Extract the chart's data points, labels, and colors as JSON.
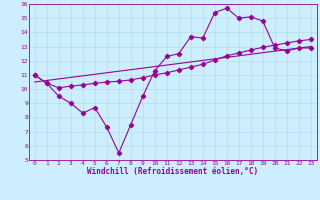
{
  "xlabel": "Windchill (Refroidissement éolien,°C)",
  "xlim": [
    -0.5,
    23.5
  ],
  "ylim": [
    5,
    16
  ],
  "xticks": [
    0,
    1,
    2,
    3,
    4,
    5,
    6,
    7,
    8,
    9,
    10,
    11,
    12,
    13,
    14,
    15,
    16,
    17,
    18,
    19,
    20,
    21,
    22,
    23
  ],
  "yticks": [
    5,
    6,
    7,
    8,
    9,
    10,
    11,
    12,
    13,
    14,
    15,
    16
  ],
  "background_color": "#cceeff",
  "line_color": "#990099",
  "series1_x": [
    0,
    1,
    2,
    3,
    4,
    5,
    6,
    7,
    8,
    9,
    10,
    11,
    12,
    13,
    14,
    15,
    16,
    17,
    18,
    19,
    20,
    21,
    22,
    23
  ],
  "series1_y": [
    11.0,
    10.4,
    9.5,
    9.0,
    8.3,
    8.7,
    7.3,
    5.5,
    7.5,
    9.5,
    11.3,
    12.3,
    12.5,
    13.7,
    13.6,
    15.4,
    15.7,
    15.0,
    15.1,
    14.8,
    12.9,
    12.7,
    12.9,
    12.9
  ],
  "series2_x": [
    0,
    1,
    2,
    3,
    4,
    5,
    6,
    7,
    8,
    9,
    10,
    11,
    12,
    13,
    14,
    15,
    16,
    17,
    18,
    19,
    20,
    21,
    22,
    23
  ],
  "series2_y": [
    11.0,
    10.4,
    10.1,
    10.2,
    10.3,
    10.4,
    10.5,
    10.55,
    10.65,
    10.8,
    11.0,
    11.15,
    11.35,
    11.55,
    11.75,
    12.05,
    12.35,
    12.55,
    12.75,
    12.95,
    13.1,
    13.25,
    13.4,
    13.5
  ],
  "series3_x": [
    0,
    23
  ],
  "series3_y": [
    10.5,
    13.0
  ]
}
